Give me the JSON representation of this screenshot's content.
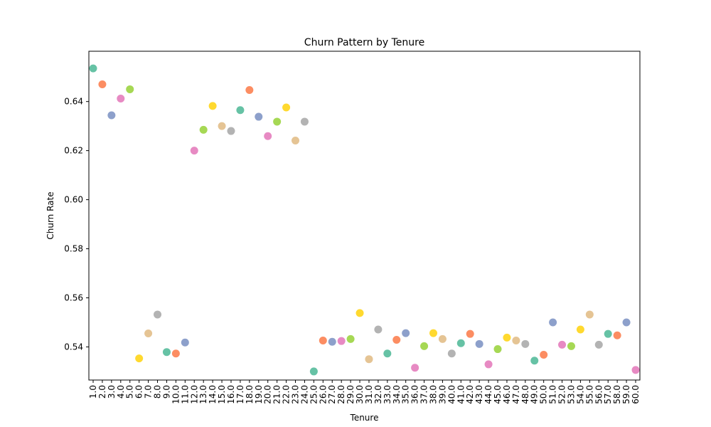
{
  "chart_data": {
    "type": "scatter",
    "title": "Churn Pattern by Tenure",
    "xlabel": "Tenure",
    "ylabel": "Churn Rate",
    "ylim": [
      0.5265,
      0.6605
    ],
    "yticks": [
      0.54,
      0.56,
      0.58,
      0.6,
      0.62,
      0.64
    ],
    "ytick_labels": [
      "0.54",
      "0.56",
      "0.58",
      "0.60",
      "0.62",
      "0.64"
    ],
    "grid": false,
    "legend": "none",
    "palette": [
      "#66c2a5",
      "#fc8d62",
      "#8da0cb",
      "#e78ac3",
      "#a6d854",
      "#ffd92f",
      "#e5c494",
      "#b3b3b3"
    ],
    "x": [
      "1.0",
      "2.0",
      "3.0",
      "4.0",
      "5.0",
      "6.0",
      "7.0",
      "8.0",
      "9.0",
      "10.0",
      "11.0",
      "12.0",
      "13.0",
      "14.0",
      "15.0",
      "16.0",
      "17.0",
      "18.0",
      "19.0",
      "20.0",
      "21.0",
      "22.0",
      "23.0",
      "24.0",
      "25.0",
      "26.0",
      "27.0",
      "28.0",
      "29.0",
      "30.0",
      "31.0",
      "32.0",
      "33.0",
      "34.0",
      "35.0",
      "36.0",
      "37.0",
      "38.0",
      "39.0",
      "40.0",
      "41.0",
      "42.0",
      "43.0",
      "44.0",
      "45.0",
      "46.0",
      "47.0",
      "48.0",
      "49.0",
      "50.0",
      "51.0",
      "52.0",
      "53.0",
      "54.0",
      "55.0",
      "56.0",
      "57.0",
      "58.0",
      "59.0",
      "60.0"
    ],
    "y": [
      0.6535,
      0.647,
      0.6344,
      0.6412,
      0.645,
      0.5353,
      0.5455,
      0.5532,
      0.5379,
      0.5373,
      0.5418,
      0.62,
      0.6285,
      0.6382,
      0.63,
      0.628,
      0.6365,
      0.6447,
      0.6338,
      0.6259,
      0.6318,
      0.6376,
      0.6241,
      0.6318,
      0.53,
      0.5426,
      0.5421,
      0.5424,
      0.5432,
      0.5538,
      0.535,
      0.5471,
      0.5373,
      0.5429,
      0.5456,
      0.5315,
      0.5403,
      0.5456,
      0.5432,
      0.5373,
      0.5415,
      0.5453,
      0.5412,
      0.5329,
      0.5391,
      0.5438,
      0.5426,
      0.5412,
      0.5344,
      0.5368,
      0.55,
      0.5409,
      0.5403,
      0.5471,
      0.5532,
      0.5409,
      0.5453,
      0.5447,
      0.55,
      0.5306
    ]
  }
}
